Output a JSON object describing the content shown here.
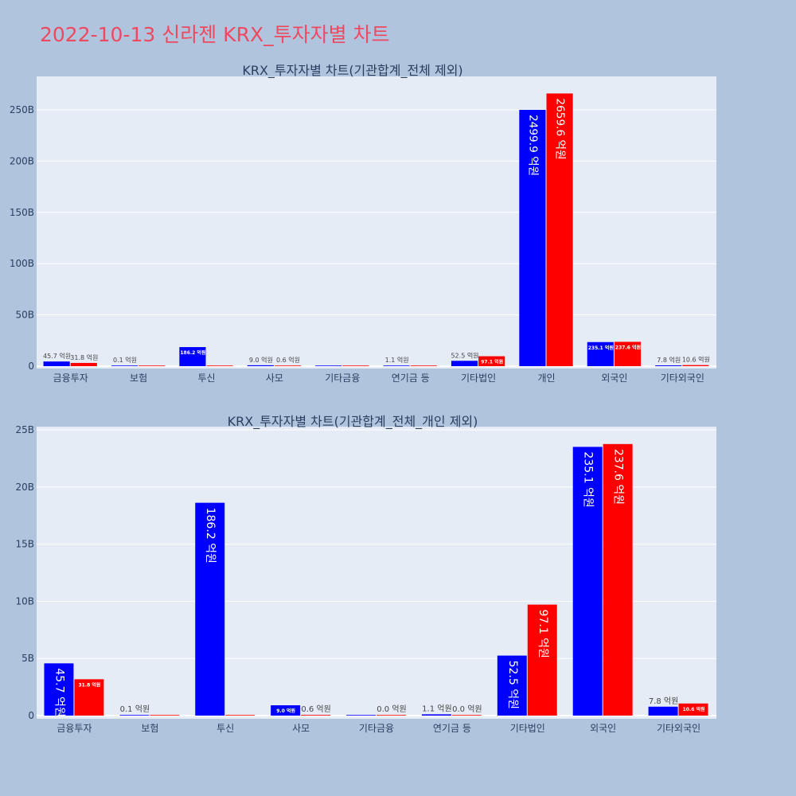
{
  "title": "2022-10-13 신라젠 KRX_투자자별 차트",
  "colors": {
    "blue": "#0000ff",
    "red": "#ff0000",
    "plot_bg": "#e5ecf6",
    "title": "#ef4960"
  },
  "chart_data": [
    {
      "type": "bar",
      "title": "KRX_투자자별 차트(기관합계_전체 제외)",
      "unit": "B",
      "ylim": [
        -2.3,
        282.6
      ],
      "yticks": [
        0,
        50,
        100,
        150,
        200,
        250
      ],
      "ytick_labels": [
        "0",
        "50B",
        "100B",
        "150B",
        "200B",
        "250B"
      ],
      "categories": [
        "금융투자",
        "보험",
        "투신",
        "사모",
        "기타금융",
        "연기금 등",
        "기타법인",
        "개인",
        "외국인",
        "기타외국인"
      ],
      "series": [
        {
          "color": "blue",
          "values": [
            4.57,
            0.01,
            18.62,
            0.9,
            0,
            0.11,
            5.25,
            249.99,
            23.51,
            0.78
          ],
          "labels": [
            "45.7 억원",
            "0.1 억원",
            "186.2 억원",
            "9.0 억원",
            null,
            "1.1 억원",
            "52.5 억원",
            "2499.9 억원",
            "235.1 억원",
            "7.8 억원"
          ]
        },
        {
          "color": "red",
          "values": [
            3.18,
            0,
            0,
            0.06,
            0,
            0,
            9.71,
            265.96,
            23.76,
            1.06
          ],
          "labels": [
            "31.8 억원",
            null,
            null,
            "0.6 억원",
            null,
            null,
            "97.1 억원",
            "2659.6 억원",
            "237.6 억원",
            "10.6 억원"
          ]
        }
      ]
    },
    {
      "type": "bar",
      "title": "KRX_투자자별 차트(기관합계_전체_개인 제외)",
      "unit": "B",
      "ylim": [
        -0.28,
        25.28
      ],
      "yticks": [
        0,
        5,
        10,
        15,
        20,
        25
      ],
      "ytick_labels": [
        "0",
        "5B",
        "10B",
        "15B",
        "20B",
        "25B"
      ],
      "categories": [
        "금융투자",
        "보험",
        "투신",
        "사모",
        "기타금융",
        "연기금 등",
        "기타법인",
        "외국인",
        "기타외국인"
      ],
      "series": [
        {
          "color": "blue",
          "values": [
            4.57,
            0.01,
            18.62,
            0.9,
            0,
            0.11,
            5.25,
            23.51,
            0.78
          ],
          "labels": [
            "45.7 억원",
            "0.1 억원",
            "186.2 억원",
            "9.0 억원",
            null,
            "1.1 억원",
            "52.5 억원",
            "235.1 억원",
            "7.8 억원"
          ]
        },
        {
          "color": "red",
          "values": [
            3.18,
            0,
            0,
            0.06,
            0,
            0,
            9.71,
            23.76,
            1.06
          ],
          "labels": [
            "31.8 억원",
            null,
            null,
            "0.6 억원",
            "0.0 억원",
            "0.0 억원",
            "97.1 억원",
            "237.6 억원",
            "10.6 억원"
          ]
        }
      ]
    }
  ]
}
